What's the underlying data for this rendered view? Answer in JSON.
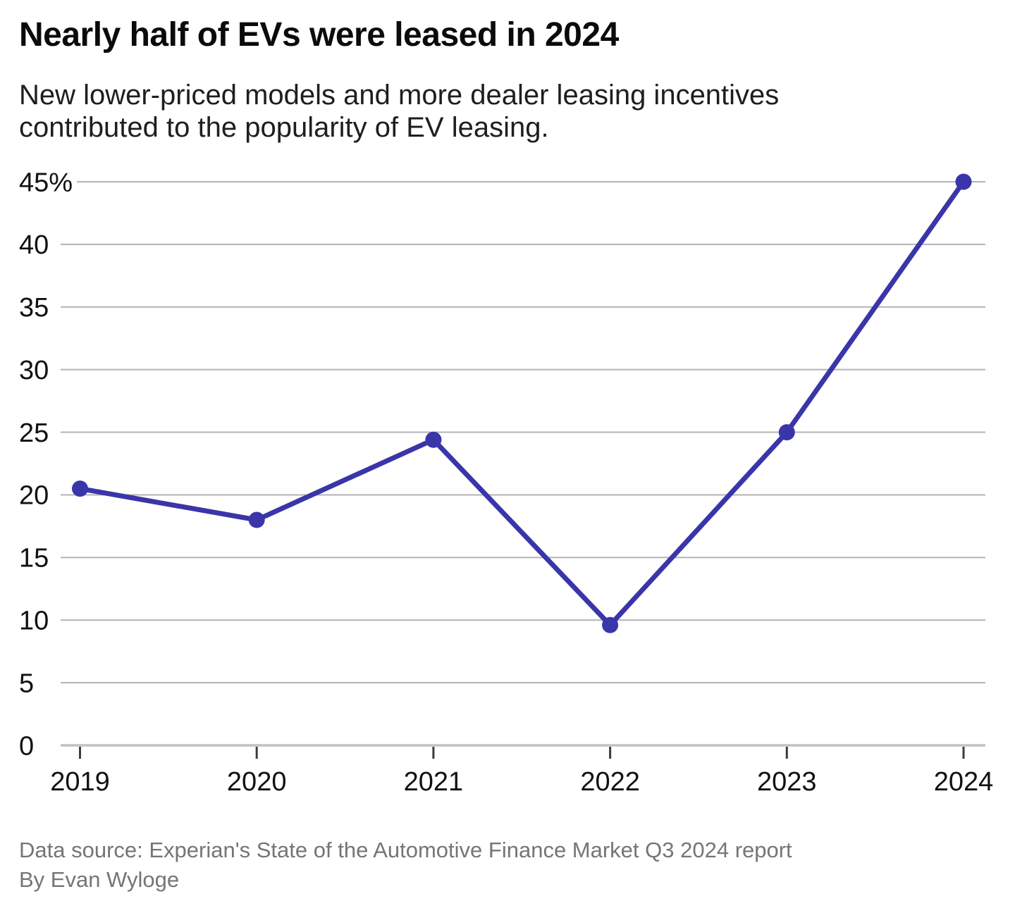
{
  "header": {
    "title": "Nearly half of EVs were leased in 2024",
    "subtitle": "New lower-priced models and more dealer leasing incentives contributed to the popularity of EV leasing."
  },
  "footer": {
    "source": "Data source: Experian's State of the Automotive Finance Market Q3 2024 report",
    "byline": "By Evan Wyloge"
  },
  "colors": {
    "line": "#3a35a8",
    "marker": "#3a35a8",
    "grid": "#b3b3b3",
    "zero_axis": "#c1c1c1",
    "tick": "#3c3c3c",
    "axis_label": "#111111",
    "footer_text": "#757575"
  },
  "chart_data": {
    "type": "line",
    "x": [
      "2019",
      "2020",
      "2021",
      "2022",
      "2023",
      "2024"
    ],
    "values": [
      20.5,
      18,
      24.4,
      9.6,
      25,
      45
    ],
    "title": "Nearly half of EVs were leased in 2024",
    "subtitle": "New lower-priced models and more dealer leasing incentives contributed to the popularity of EV leasing.",
    "xlabel": "",
    "ylabel": "",
    "ylim": [
      0,
      45
    ],
    "yticks": [
      0,
      5,
      10,
      15,
      20,
      25,
      30,
      35,
      40,
      45
    ],
    "ytick_labels": [
      "0",
      "5",
      "10",
      "15",
      "20",
      "25",
      "30",
      "35",
      "40",
      "45%"
    ],
    "grid": true,
    "legend": false,
    "marker": "circle"
  }
}
